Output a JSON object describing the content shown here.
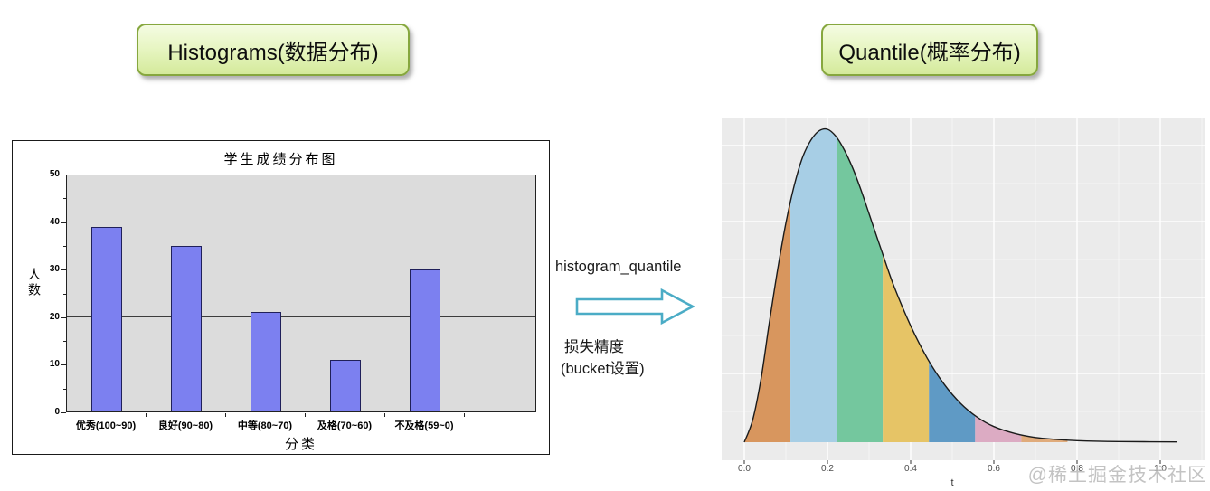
{
  "badges": {
    "left": "Histograms(数据分布)",
    "right": "Quantile(概率分布)"
  },
  "middle": {
    "top_label": "histogram_quantile",
    "note_line1": "损失精度",
    "note_line2": "(bucket设置)",
    "arrow_color": "#4bacc6"
  },
  "watermark": "@稀土掘金技术社区",
  "chart_data": [
    {
      "type": "bar",
      "title": "学生成绩分布图",
      "xlabel": "分类",
      "ylabel": "人数",
      "categories": [
        "优秀(100~90)",
        "良好(90~80)",
        "中等(80~70)",
        "及格(70~60)",
        "不及格(59~0)"
      ],
      "values": [
        39,
        35,
        21,
        11,
        30
      ],
      "ylim": [
        0,
        50
      ],
      "yticks": [
        0,
        10,
        20,
        30,
        40,
        50
      ],
      "grid": true,
      "legend": "none",
      "bar_color": "#7c80f0",
      "bar_border": "#20205a",
      "plot_bg": "#dcdcdc"
    },
    {
      "type": "area",
      "title": "",
      "xlabel": "t",
      "ylabel": "",
      "xticks": [
        "0.0",
        "0.2",
        "0.4",
        "0.6",
        "0.8",
        "1.0"
      ],
      "xlim": [
        -0.054,
        1.107
      ],
      "grid": true,
      "legend": "none",
      "plot_bg": "#ebebeb",
      "grid_color": "#ffffff",
      "line_color": "#1a1a1a",
      "curve_points_t_h": [
        [
          0.0,
          0.0
        ],
        [
          0.02,
          0.07
        ],
        [
          0.04,
          0.2
        ],
        [
          0.06,
          0.38
        ],
        [
          0.08,
          0.55
        ],
        [
          0.1,
          0.7
        ],
        [
          0.12,
          0.82
        ],
        [
          0.14,
          0.91
        ],
        [
          0.16,
          0.965
        ],
        [
          0.18,
          0.995
        ],
        [
          0.2,
          1.0
        ],
        [
          0.22,
          0.978
        ],
        [
          0.24,
          0.935
        ],
        [
          0.26,
          0.878
        ],
        [
          0.28,
          0.808
        ],
        [
          0.3,
          0.73
        ],
        [
          0.33,
          0.612
        ],
        [
          0.36,
          0.498
        ],
        [
          0.4,
          0.372
        ],
        [
          0.44,
          0.268
        ],
        [
          0.48,
          0.186
        ],
        [
          0.52,
          0.124
        ],
        [
          0.56,
          0.08
        ],
        [
          0.6,
          0.05
        ],
        [
          0.65,
          0.028
        ],
        [
          0.7,
          0.015
        ],
        [
          0.75,
          0.009
        ],
        [
          0.8,
          0.005
        ],
        [
          0.9,
          0.002
        ],
        [
          1.04,
          0.001
        ]
      ],
      "bands": [
        {
          "t_from": 0.0,
          "t_to": 0.111,
          "color": "#d8965e"
        },
        {
          "t_from": 0.111,
          "t_to": 0.222,
          "color": "#a7cee5"
        },
        {
          "t_from": 0.222,
          "t_to": 0.333,
          "color": "#74c79e"
        },
        {
          "t_from": 0.333,
          "t_to": 0.444,
          "color": "#e6c466"
        },
        {
          "t_from": 0.444,
          "t_to": 0.555,
          "color": "#5f9ac5"
        },
        {
          "t_from": 0.555,
          "t_to": 0.666,
          "color": "#dcabc3"
        },
        {
          "t_from": 0.666,
          "t_to": 0.777,
          "color": "#e0ab7b"
        }
      ]
    }
  ]
}
